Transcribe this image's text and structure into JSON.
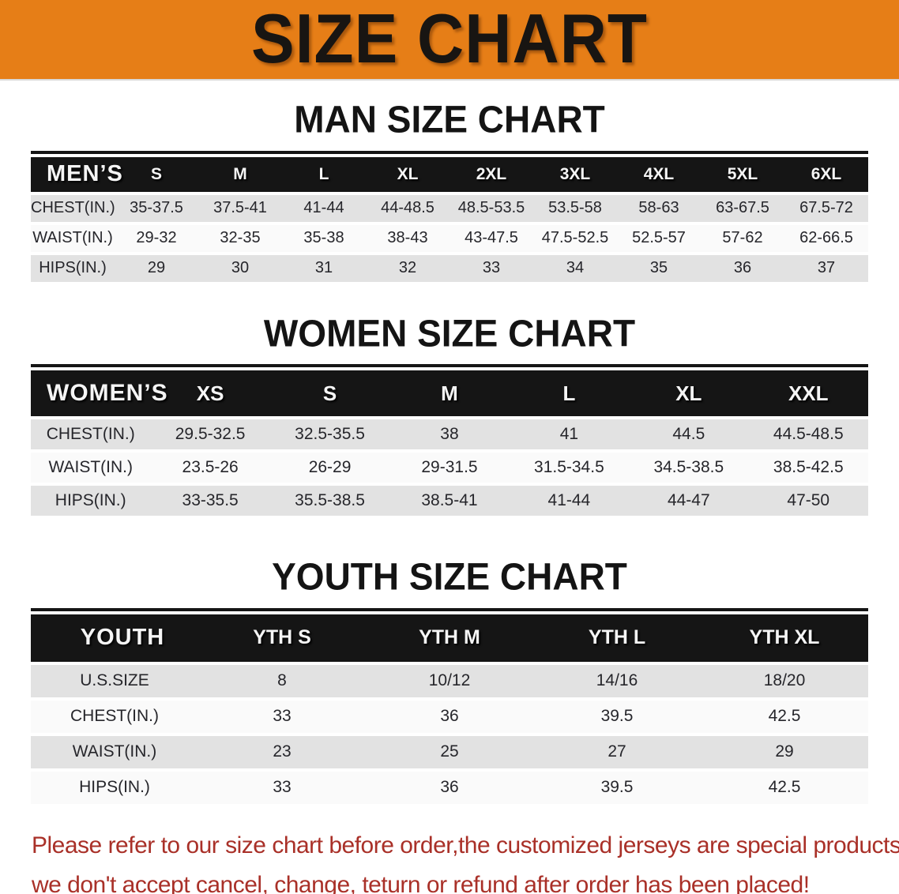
{
  "banner": {
    "title": "SIZE CHART",
    "bg_color": "#e67e17"
  },
  "sections": {
    "men": {
      "heading": "MAN SIZE CHART"
    },
    "women": {
      "heading": "WOMEN SIZE CHART"
    },
    "youth": {
      "heading": "YOUTH SIZE CHART"
    }
  },
  "tables": {
    "men": {
      "header": [
        "MEN’S",
        "S",
        "M",
        "L",
        "XL",
        "2XL",
        "3XL",
        "4XL",
        "5XL",
        "6XL"
      ],
      "rows": [
        {
          "label": "CHEST(IN.)",
          "values": [
            "35-37.5",
            "37.5-41",
            "41-44",
            "44-48.5",
            "48.5-53.5",
            "53.5-58",
            "58-63",
            "63-67.5",
            "67.5-72"
          ]
        },
        {
          "label": "WAIST(IN.)",
          "values": [
            "29-32",
            "32-35",
            "35-38",
            "38-43",
            "43-47.5",
            "47.5-52.5",
            "52.5-57",
            "57-62",
            "62-66.5"
          ]
        },
        {
          "label": "HIPS(IN.)",
          "values": [
            "29",
            "30",
            "31",
            "32",
            "33",
            "34",
            "35",
            "36",
            "37"
          ]
        }
      ]
    },
    "women": {
      "header": [
        "WOMEN’S",
        "XS",
        "S",
        "M",
        "L",
        "XL",
        "XXL"
      ],
      "rows": [
        {
          "label": "CHEST(IN.)",
          "values": [
            "29.5-32.5",
            "32.5-35.5",
            "38",
            "41",
            "44.5",
            "44.5-48.5"
          ]
        },
        {
          "label": "WAIST(IN.)",
          "values": [
            "23.5-26",
            "26-29",
            "29-31.5",
            "31.5-34.5",
            "34.5-38.5",
            "38.5-42.5"
          ]
        },
        {
          "label": "HIPS(IN.)",
          "values": [
            "33-35.5",
            "35.5-38.5",
            "38.5-41",
            "41-44",
            "44-47",
            "47-50"
          ]
        }
      ]
    },
    "youth": {
      "header": [
        "YOUTH",
        "YTH S",
        "YTH M",
        "YTH L",
        "YTH XL"
      ],
      "rows": [
        {
          "label": "U.S.SIZE",
          "values": [
            "8",
            "10/12",
            "14/16",
            "18/20"
          ]
        },
        {
          "label": "CHEST(IN.)",
          "values": [
            "33",
            "36",
            "39.5",
            "42.5"
          ]
        },
        {
          "label": "WAIST(IN.)",
          "values": [
            "23",
            "25",
            "27",
            "29"
          ]
        },
        {
          "label": "HIPS(IN.)",
          "values": [
            "33",
            "36",
            "39.5",
            "42.5"
          ]
        }
      ]
    }
  },
  "disclaimer": {
    "line1": "Please refer to our size chart before order,the customized jerseys are special products,",
    "line2": "we don't accept cancel, change, teturn or refund after order has been placed!",
    "color": "#a93028"
  }
}
